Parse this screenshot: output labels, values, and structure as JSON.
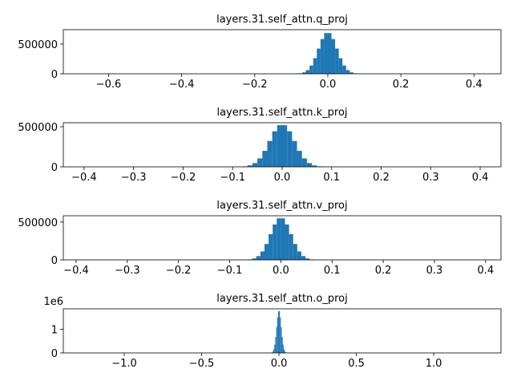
{
  "chart_data": [
    {
      "type": "histogram",
      "title": "layers.31.self_attn.q_proj",
      "color": "#1f77b4",
      "bins": [
        -0.1,
        -0.09,
        -0.08,
        -0.07,
        -0.06,
        -0.05,
        -0.04,
        -0.03,
        -0.02,
        -0.01,
        0,
        0.01,
        0.02,
        0.03,
        0.04,
        0.05,
        0.06,
        0.07,
        0.08,
        0.09,
        0.1
      ],
      "values": [
        500,
        2000,
        8000,
        24000,
        62000,
        139000,
        263000,
        425000,
        585000,
        686000,
        686000,
        585000,
        425000,
        263000,
        139000,
        62000,
        24000,
        8000,
        2000,
        500
      ],
      "xlim": [
        -0.724,
        0.474
      ],
      "ylim": [
        0,
        743000
      ],
      "xticks": [
        {
          "value": -0.6,
          "label": "−0.6"
        },
        {
          "value": -0.4,
          "label": "−0.4"
        },
        {
          "value": -0.2,
          "label": "−0.2"
        },
        {
          "value": 0,
          "label": "0.0"
        },
        {
          "value": 0.2,
          "label": "0.2"
        },
        {
          "value": 0.4,
          "label": "0.4"
        }
      ],
      "yticks": [
        0,
        500000
      ]
    },
    {
      "type": "histogram",
      "title": "layers.31.self_attn.k_proj",
      "color": "#1f77b4",
      "bins": [
        -0.1,
        -0.09,
        -0.08,
        -0.07,
        -0.06,
        -0.05,
        -0.04,
        -0.03,
        -0.02,
        -0.01,
        0,
        0.01,
        0.02,
        0.03,
        0.04,
        0.05,
        0.06,
        0.07,
        0.08,
        0.09,
        0.1
      ],
      "values": [
        400,
        1600,
        6000,
        18000,
        47000,
        105000,
        199000,
        322000,
        443000,
        519000,
        519000,
        443000,
        322000,
        199000,
        105000,
        47000,
        18000,
        6000,
        1600,
        400
      ],
      "xlim": [
        -0.442,
        0.442
      ],
      "ylim": [
        0,
        550000
      ],
      "xticks": [
        {
          "value": -0.4,
          "label": "−0.4"
        },
        {
          "value": -0.3,
          "label": "−0.3"
        },
        {
          "value": -0.2,
          "label": "−0.2"
        },
        {
          "value": -0.1,
          "label": "−0.1"
        },
        {
          "value": 0,
          "label": "0.0"
        },
        {
          "value": 0.1,
          "label": "0.1"
        },
        {
          "value": 0.2,
          "label": "0.2"
        },
        {
          "value": 0.3,
          "label": "0.3"
        },
        {
          "value": 0.4,
          "label": "0.4"
        }
      ],
      "yticks": [
        0,
        500000
      ]
    },
    {
      "type": "histogram",
      "title": "layers.31.self_attn.v_proj",
      "color": "#1f77b4",
      "bins": [
        -0.08,
        -0.072,
        -0.064,
        -0.056,
        -0.048,
        -0.04,
        -0.032,
        -0.024,
        -0.016,
        -0.008,
        0,
        0.008,
        0.016,
        0.024,
        0.032,
        0.04,
        0.048,
        0.056,
        0.064,
        0.072,
        0.08
      ],
      "values": [
        400,
        1700,
        6000,
        19000,
        50000,
        111000,
        210000,
        340000,
        468000,
        549000,
        549000,
        468000,
        340000,
        210000,
        111000,
        50000,
        19000,
        6000,
        1700,
        400
      ],
      "xlim": [
        -0.425,
        0.43
      ],
      "ylim": [
        0,
        583000
      ],
      "xticks": [
        {
          "value": -0.4,
          "label": "−0.4"
        },
        {
          "value": -0.3,
          "label": "−0.3"
        },
        {
          "value": -0.2,
          "label": "−0.2"
        },
        {
          "value": -0.1,
          "label": "−0.1"
        },
        {
          "value": 0,
          "label": "0.0"
        },
        {
          "value": 0.1,
          "label": "0.1"
        },
        {
          "value": 0.2,
          "label": "0.2"
        },
        {
          "value": 0.3,
          "label": "0.3"
        },
        {
          "value": 0.4,
          "label": "0.4"
        }
      ],
      "yticks": [
        0,
        500000
      ]
    },
    {
      "type": "histogram",
      "title": "layers.31.self_attn.o_proj",
      "color": "#1f77b4",
      "bins": [
        -0.06,
        -0.054,
        -0.048,
        -0.042,
        -0.036,
        -0.03,
        -0.024,
        -0.018,
        -0.012,
        -0.006,
        0,
        0.006,
        0.012,
        0.018,
        0.024,
        0.03,
        0.036,
        0.042,
        0.048,
        0.054,
        0.06
      ],
      "values": [
        1300,
        5600,
        20000,
        61000,
        160000,
        356000,
        675000,
        1093000,
        1503000,
        1764000,
        1764000,
        1503000,
        1093000,
        675000,
        356000,
        160000,
        61000,
        20000,
        5600,
        1300
      ],
      "xlim": [
        -1.394,
        1.435
      ],
      "ylim": [
        0,
        1870000
      ],
      "xticks": [
        {
          "value": -1.0,
          "label": "−1.0"
        },
        {
          "value": -0.5,
          "label": "−0.5"
        },
        {
          "value": 0,
          "label": "0.0"
        },
        {
          "value": 0.5,
          "label": "0.5"
        },
        {
          "value": 1.0,
          "label": "1.0"
        }
      ],
      "yticks": [
        0,
        {
          "value": 1000000,
          "label": "1"
        }
      ],
      "y_offset_label": "1e6"
    }
  ]
}
